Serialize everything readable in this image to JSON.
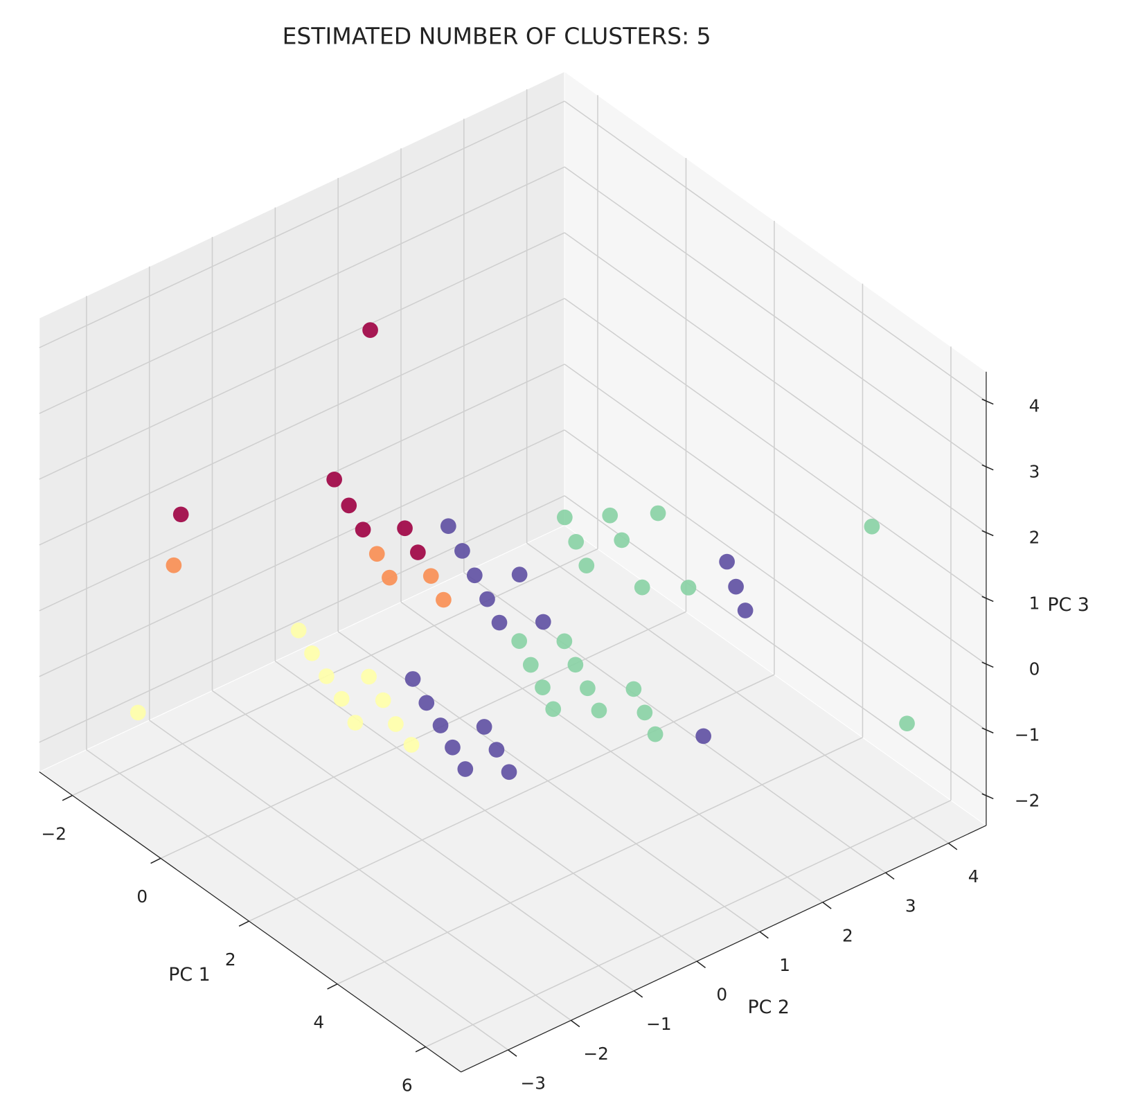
{
  "chart_data": {
    "type": "scatter3d",
    "title": "ESTIMATED NUMBER OF CLUSTERS: 5",
    "xlabel": "PC 1",
    "ylabel": "PC 2",
    "zlabel": "PC 3",
    "xlim": [
      -2.75,
      6.8
    ],
    "ylim": [
      -3.75,
      4.6
    ],
    "zlim": [
      -2.45,
      4.45
    ],
    "xticks": [
      {
        "value": -2,
        "label": "−2"
      },
      0,
      2,
      4,
      6
    ],
    "yticks": [
      {
        "value": -3,
        "label": "−3"
      },
      {
        "value": -2,
        "label": "−2"
      },
      {
        "value": -1,
        "label": "−1"
      },
      0,
      1,
      2,
      3,
      4
    ],
    "zticks": [
      {
        "value": -2,
        "label": "−2"
      },
      {
        "value": -1,
        "label": "−1"
      },
      0,
      1,
      2,
      3,
      4
    ],
    "grid": true,
    "series": [
      {
        "color": "#9e0142",
        "x": [
          -0.74,
          -0.17,
          0.54,
          1.17,
          1.76,
          2.11,
          2.69
        ],
        "y": [
          0.1,
          -3.31,
          -1.37,
          -1.58,
          -1.77,
          -1.35,
          -1.55
        ],
        "z": [
          3.5,
          2.5,
          2.5,
          2.5,
          2.5,
          2.5,
          2.5
        ]
      },
      {
        "color": "#f98e52",
        "x": [
          0.11,
          1.72,
          2.29,
          2.63,
          3.2
        ],
        "y": [
          -3.62,
          -1.52,
          -1.72,
          -1.3,
          -1.5
        ],
        "z": [
          2.0,
          2.0,
          2.0,
          2.0,
          2.0
        ]
      },
      {
        "color": "#ffffa8",
        "x": [
          -0.04,
          0.52,
          1.09,
          1.48,
          1.66,
          2.06,
          2.24,
          2.63,
          3.17,
          -1.17
        ],
        "y": [
          -1.53,
          -1.71,
          -1.88,
          -1.48,
          -2.04,
          -1.66,
          -2.23,
          -1.86,
          -1.99,
          -3.29
        ],
        "z": [
          0,
          0,
          0,
          0,
          0,
          0,
          0,
          0,
          0,
          -1
        ]
      },
      {
        "color": "#5e4fa2",
        "x": [
          1.2,
          1.8,
          2.38,
          2.77,
          2.95,
          3.51,
          3.89,
          1.92,
          2.5,
          3.06,
          3.48,
          3.59,
          4.03,
          4.12,
          4.57,
          4.37,
          4.39,
          4.95,
          5.49
        ],
        "y": [
          -0.02,
          -0.22,
          -0.43,
          0.01,
          -0.63,
          -0.83,
          -0.4,
          -1.09,
          -1.28,
          -1.45,
          -1.05,
          -1.63,
          -1.24,
          -1.8,
          -1.42,
          1.81,
          2.17,
          1.92,
          1.69
        ],
        "z": [
          1.5,
          1.5,
          1.5,
          1.5,
          1.5,
          1.5,
          1.5,
          0,
          0,
          0,
          0,
          0,
          0,
          0,
          0,
          -1,
          1.5,
          1.5,
          1.5
        ]
      },
      {
        "color": "#88d1a4",
        "x": [
          2.71,
          3.08,
          3.47,
          3.28,
          3.66,
          3.83,
          4.75,
          5.17,
          5.65,
          2.15,
          2.56,
          2.71,
          3.11,
          3.25,
          3.67,
          4.1,
          3.76,
          4.2,
          4.65,
          5.16,
          5.96
        ],
        "y": [
          0.77,
          1.23,
          1.72,
          0.55,
          1.01,
          0.33,
          0.57,
          1.01,
          3.59,
          0.44,
          0.87,
          0.23,
          0.66,
          0.04,
          0.46,
          0.89,
          -0.15,
          0.27,
          0.68,
          0.49,
          3.93
        ],
        "z": [
          2.0,
          2.0,
          2.0,
          2.0,
          2.0,
          2.0,
          2.0,
          2.0,
          2.0,
          0,
          0,
          0,
          0,
          0,
          0,
          0,
          0,
          0,
          0,
          0,
          -1
        ]
      }
    ]
  }
}
